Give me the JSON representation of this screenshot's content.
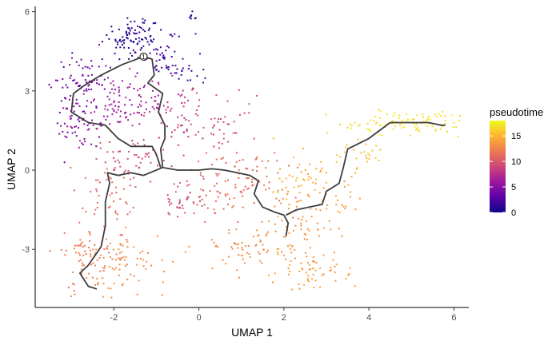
{
  "chart_data": {
    "type": "scatter",
    "xlabel": "UMAP 1",
    "ylabel": "UMAP 2",
    "xlim": [
      -3.85,
      6.35
    ],
    "ylim": [
      -5.2,
      6.2
    ],
    "x_ticks": [
      -2,
      0,
      2,
      4,
      6
    ],
    "x_tick_labels": [
      "-2",
      "0",
      "2",
      "4",
      "6"
    ],
    "y_ticks": [
      -3,
      0,
      3,
      6
    ],
    "y_tick_labels": [
      "-3",
      "0",
      "3",
      "6"
    ],
    "grid": false,
    "color_scale": {
      "title": "pseudotime",
      "min": 0,
      "max": 18,
      "ticks": [
        0,
        5,
        10,
        15
      ],
      "tick_labels": [
        "0",
        "5",
        "10",
        "15"
      ],
      "colors": [
        "#0d0887",
        "#5c01a6",
        "#9c179e",
        "#cc4778",
        "#ed7953",
        "#fdb42f",
        "#f0f921"
      ]
    },
    "trajectory": {
      "color": "#3d3d3d",
      "root_node": {
        "x": -1.3,
        "y": 4.3
      },
      "branches": [
        [
          [
            -1.3,
            4.3
          ],
          [
            -1.8,
            4.0
          ],
          [
            -2.3,
            3.6
          ],
          [
            -2.7,
            3.2
          ],
          [
            -2.95,
            2.9
          ],
          [
            -3.0,
            2.2
          ],
          [
            -2.6,
            1.8
          ],
          [
            -2.2,
            1.7
          ],
          [
            -1.9,
            1.2
          ],
          [
            -1.6,
            0.9
          ],
          [
            -1.1,
            0.9
          ],
          [
            -1.0,
            0.6
          ],
          [
            -0.9,
            0.1
          ]
        ],
        [
          [
            -1.3,
            4.3
          ],
          [
            -1.1,
            4.2
          ],
          [
            -1.05,
            3.6
          ],
          [
            -1.2,
            3.3
          ],
          [
            -0.85,
            2.9
          ],
          [
            -0.95,
            2.2
          ],
          [
            -0.8,
            1.7
          ],
          [
            -0.8,
            1.2
          ],
          [
            -0.9,
            0.8
          ],
          [
            -0.85,
            0.1
          ]
        ],
        [
          [
            -0.85,
            0.1
          ],
          [
            -1.3,
            -0.2
          ],
          [
            -1.6,
            -0.1
          ],
          [
            -1.9,
            -0.2
          ],
          [
            -2.15,
            -0.1
          ],
          [
            -2.1,
            -0.5
          ],
          [
            -2.2,
            -1.2
          ],
          [
            -2.2,
            -2.1
          ],
          [
            -2.3,
            -2.9
          ],
          [
            -2.6,
            -3.6
          ],
          [
            -2.8,
            -3.9
          ],
          [
            -2.6,
            -4.4
          ],
          [
            -2.4,
            -4.5
          ]
        ],
        [
          [
            -0.85,
            0.1
          ],
          [
            -0.5,
            0.0
          ],
          [
            0.0,
            0.0
          ],
          [
            0.3,
            0.05
          ],
          [
            0.6,
            0.0
          ],
          [
            0.9,
            -0.1
          ],
          [
            1.2,
            -0.2
          ],
          [
            1.4,
            -0.4
          ],
          [
            1.3,
            -0.9
          ],
          [
            1.5,
            -1.4
          ],
          [
            1.8,
            -1.6
          ],
          [
            2.0,
            -1.7
          ],
          [
            2.1,
            -2.0
          ],
          [
            2.05,
            -2.5
          ]
        ],
        [
          [
            2.05,
            -1.7
          ],
          [
            2.3,
            -1.5
          ],
          [
            2.6,
            -1.4
          ],
          [
            2.9,
            -1.3
          ],
          [
            3.0,
            -0.8
          ],
          [
            3.3,
            -0.5
          ],
          [
            3.4,
            0.1
          ],
          [
            3.5,
            0.8
          ],
          [
            4.0,
            1.2
          ],
          [
            4.5,
            1.8
          ],
          [
            5.0,
            1.8
          ],
          [
            5.4,
            1.8
          ],
          [
            5.7,
            1.7
          ],
          [
            5.8,
            1.7
          ]
        ]
      ]
    },
    "clusters": [
      {
        "cx": -1.55,
        "cy": 5.05,
        "sx": 0.35,
        "sy": 0.35,
        "n": 90,
        "t": [
          0.2,
          1.5
        ]
      },
      {
        "cx": -0.9,
        "cy": 4.3,
        "sx": 0.35,
        "sy": 0.45,
        "n": 50,
        "t": [
          1.5,
          3.0
        ]
      },
      {
        "cx": -0.3,
        "cy": 3.6,
        "sx": 0.2,
        "sy": 0.3,
        "n": 20,
        "t": [
          1.0,
          2.0
        ]
      },
      {
        "cx": -0.15,
        "cy": 5.85,
        "sx": 0.08,
        "sy": 0.07,
        "n": 7,
        "t": [
          0.0,
          0.5
        ]
      },
      {
        "cx": -2.7,
        "cy": 3.5,
        "sx": 0.35,
        "sy": 0.45,
        "n": 70,
        "t": [
          2.5,
          5.0
        ]
      },
      {
        "cx": -2.85,
        "cy": 1.8,
        "sx": 0.3,
        "sy": 0.45,
        "n": 60,
        "t": [
          3.5,
          6.0
        ]
      },
      {
        "cx": -1.8,
        "cy": 2.5,
        "sx": 0.55,
        "sy": 0.55,
        "n": 110,
        "t": [
          5.0,
          7.5
        ]
      },
      {
        "cx": -0.6,
        "cy": 1.9,
        "sx": 0.4,
        "sy": 0.6,
        "n": 50,
        "t": [
          7.0,
          9.0
        ]
      },
      {
        "cx": 0.45,
        "cy": 1.7,
        "sx": 0.45,
        "sy": 0.55,
        "n": 45,
        "t": [
          9.0,
          10.5
        ]
      },
      {
        "cx": -1.6,
        "cy": 0.4,
        "sx": 0.45,
        "sy": 0.4,
        "n": 50,
        "t": [
          8.5,
          10.0
        ]
      },
      {
        "cx": -0.45,
        "cy": -1.2,
        "sx": 0.2,
        "sy": 0.25,
        "n": 22,
        "t": [
          8.5,
          9.5
        ]
      },
      {
        "cx": 0.0,
        "cy": -0.8,
        "sx": 0.4,
        "sy": 0.6,
        "n": 40,
        "t": [
          10.0,
          11.0
        ]
      },
      {
        "cx": 1.1,
        "cy": -0.5,
        "sx": 0.55,
        "sy": 0.6,
        "n": 80,
        "t": [
          11.0,
          12.0
        ]
      },
      {
        "cx": -2.1,
        "cy": -1.0,
        "sx": 0.35,
        "sy": 0.65,
        "n": 50,
        "t": [
          10.5,
          11.5
        ]
      },
      {
        "cx": -2.6,
        "cy": -3.3,
        "sx": 0.3,
        "sy": 0.6,
        "n": 60,
        "t": [
          11.5,
          12.5
        ]
      },
      {
        "cx": -1.8,
        "cy": -3.6,
        "sx": 0.55,
        "sy": 0.55,
        "n": 80,
        "t": [
          12.5,
          13.5
        ]
      },
      {
        "cx": 1.0,
        "cy": -3.0,
        "sx": 0.55,
        "sy": 0.45,
        "n": 60,
        "t": [
          12.5,
          13.5
        ]
      },
      {
        "cx": 2.4,
        "cy": -2.4,
        "sx": 0.4,
        "sy": 0.9,
        "n": 80,
        "t": [
          13.0,
          14.0
        ]
      },
      {
        "cx": 2.8,
        "cy": -4.0,
        "sx": 0.45,
        "sy": 0.3,
        "n": 45,
        "t": [
          13.5,
          14.5
        ]
      },
      {
        "cx": 2.35,
        "cy": -0.3,
        "sx": 0.4,
        "sy": 0.6,
        "n": 40,
        "t": [
          14.0,
          15.5
        ]
      },
      {
        "cx": 3.3,
        "cy": -1.0,
        "sx": 0.25,
        "sy": 0.45,
        "n": 25,
        "t": [
          13.5,
          14.5
        ]
      },
      {
        "cx": 3.7,
        "cy": 0.6,
        "sx": 0.3,
        "sy": 0.45,
        "n": 25,
        "t": [
          15.0,
          16.0
        ]
      },
      {
        "cx": 4.8,
        "cy": 1.75,
        "sx": 0.7,
        "sy": 0.22,
        "n": 110,
        "t": [
          16.0,
          18.0
        ]
      }
    ]
  }
}
